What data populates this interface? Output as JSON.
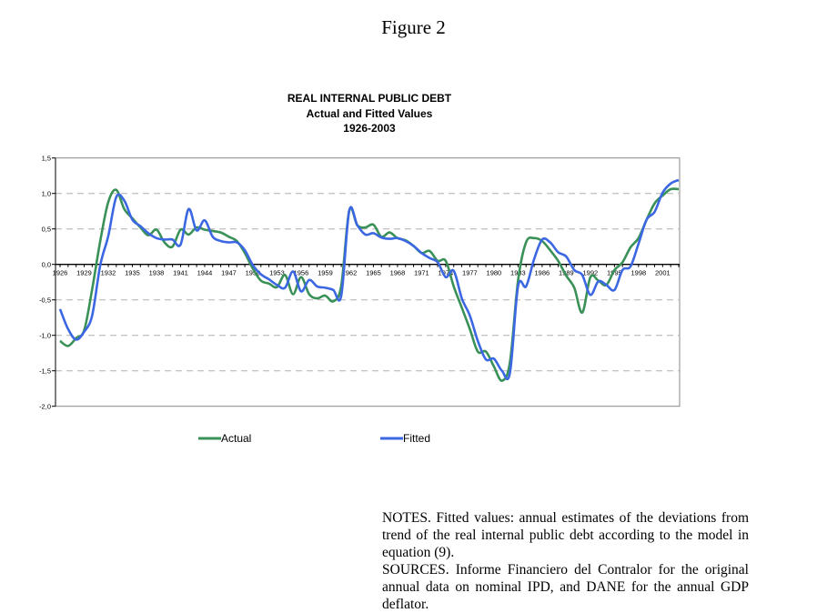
{
  "figure_title": "Figure 2",
  "chart_data": {
    "type": "line",
    "title": "REAL INTERNAL PUBLIC DEBT",
    "subtitle": "Actual and Fitted Values",
    "period": "1926-2003",
    "xlabel": "",
    "ylabel": "",
    "x_start": 1926,
    "x_end": 2003,
    "xticks": [
      "1926",
      "1929",
      "1932",
      "1935",
      "1938",
      "1941",
      "1944",
      "1947",
      "1950",
      "1953",
      "1956",
      "1959",
      "1962",
      "1965",
      "1968",
      "1971",
      "1974",
      "1977",
      "1980",
      "1983",
      "1986",
      "1989",
      "1992",
      "1995",
      "1998",
      "2001"
    ],
    "ylim": [
      -2.0,
      1.5
    ],
    "yticks": [
      {
        "value": 1.5,
        "label": "1,5"
      },
      {
        "value": 1.0,
        "label": "1,0"
      },
      {
        "value": 0.5,
        "label": "0,5"
      },
      {
        "value": 0.0,
        "label": "0,0"
      },
      {
        "value": -0.5,
        "label": "-0,5"
      },
      {
        "value": -1.0,
        "label": "-1,0"
      },
      {
        "value": -1.5,
        "label": "-1,5"
      },
      {
        "value": -2.0,
        "label": "-2,0"
      }
    ],
    "grid": "horizontal dashed",
    "legend": "bottom",
    "series": [
      {
        "name": "Actual",
        "color": "#3a9158",
        "values": [
          -1.08,
          -1.15,
          -1.04,
          -0.93,
          -0.35,
          0.33,
          0.88,
          1.05,
          0.78,
          0.65,
          0.52,
          0.41,
          0.49,
          0.31,
          0.25,
          0.49,
          0.42,
          0.52,
          0.49,
          0.47,
          0.45,
          0.39,
          0.33,
          0.16,
          -0.06,
          -0.23,
          -0.27,
          -0.32,
          -0.15,
          -0.42,
          -0.18,
          -0.42,
          -0.48,
          -0.44,
          -0.52,
          -0.3,
          0.76,
          0.55,
          0.52,
          0.56,
          0.39,
          0.45,
          0.37,
          0.34,
          0.26,
          0.16,
          0.19,
          0.05,
          0.05,
          -0.31,
          -0.61,
          -0.91,
          -1.23,
          -1.23,
          -1.44,
          -1.64,
          -1.38,
          -0.23,
          0.31,
          0.37,
          0.33,
          0.2,
          0.05,
          -0.16,
          -0.33,
          -0.68,
          -0.18,
          -0.23,
          -0.29,
          -0.08,
          0.03,
          0.24,
          0.37,
          0.63,
          0.86,
          0.97,
          1.06,
          1.06
        ]
      },
      {
        "name": "Fitted",
        "color": "#3c67e3",
        "values": [
          -0.63,
          -0.91,
          -1.06,
          -0.95,
          -0.72,
          -0.01,
          0.4,
          0.95,
          0.9,
          0.63,
          0.54,
          0.44,
          0.37,
          0.35,
          0.35,
          0.28,
          0.78,
          0.48,
          0.62,
          0.39,
          0.33,
          0.31,
          0.31,
          0.2,
          -0.01,
          -0.14,
          -0.21,
          -0.29,
          -0.33,
          -0.1,
          -0.38,
          -0.22,
          -0.31,
          -0.33,
          -0.36,
          -0.44,
          0.76,
          0.55,
          0.42,
          0.44,
          0.38,
          0.36,
          0.37,
          0.33,
          0.26,
          0.16,
          0.09,
          0.03,
          -0.18,
          -0.09,
          -0.48,
          -0.72,
          -1.08,
          -1.34,
          -1.33,
          -1.5,
          -1.53,
          -0.31,
          -0.31,
          0.07,
          0.35,
          0.31,
          0.17,
          0.11,
          -0.08,
          -0.15,
          -0.43,
          -0.24,
          -0.29,
          -0.36,
          -0.08,
          -0.03,
          0.29,
          0.63,
          0.74,
          1.01,
          1.14,
          1.19
        ]
      }
    ]
  },
  "notes": {
    "notes_text": "NOTES. Fitted values: annual estimates of the deviations from trend of the real internal public debt according to the model in equation (9).",
    "sources_text": "SOURCES. Informe Financiero del Contralor for the original annual data on nominal IPD, and DANE for the annual GDP deflator."
  }
}
